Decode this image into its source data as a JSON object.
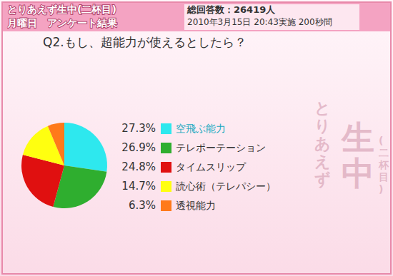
{
  "header": {
    "program": "とりあえず生中(二杯目)",
    "subtitle": "月曜日　アンケート結果",
    "total": "総回答数：26419人",
    "date": "2010年3月15日 20:43実施 200秒間"
  },
  "watermark": [
    "とりあえず",
    "生中",
    "(二杯目)"
  ],
  "chart_data": {
    "type": "pie",
    "title": "Q2.もし、超能力が使えるとしたら？",
    "categories": [
      "空飛ぶ能力",
      "テレポーテーション",
      "タイムスリップ",
      "読心術（テレパシー）",
      "透視能力"
    ],
    "values": [
      27.3,
      26.9,
      24.8,
      14.7,
      6.3
    ],
    "value_labels": [
      "27.3%",
      "26.9%",
      "24.8%",
      "14.7%",
      "6.3%"
    ],
    "colors": [
      "#2ee8ee",
      "#2fae2f",
      "#e01010",
      "#ffff10",
      "#ff7a1a"
    ],
    "legend": "right"
  }
}
